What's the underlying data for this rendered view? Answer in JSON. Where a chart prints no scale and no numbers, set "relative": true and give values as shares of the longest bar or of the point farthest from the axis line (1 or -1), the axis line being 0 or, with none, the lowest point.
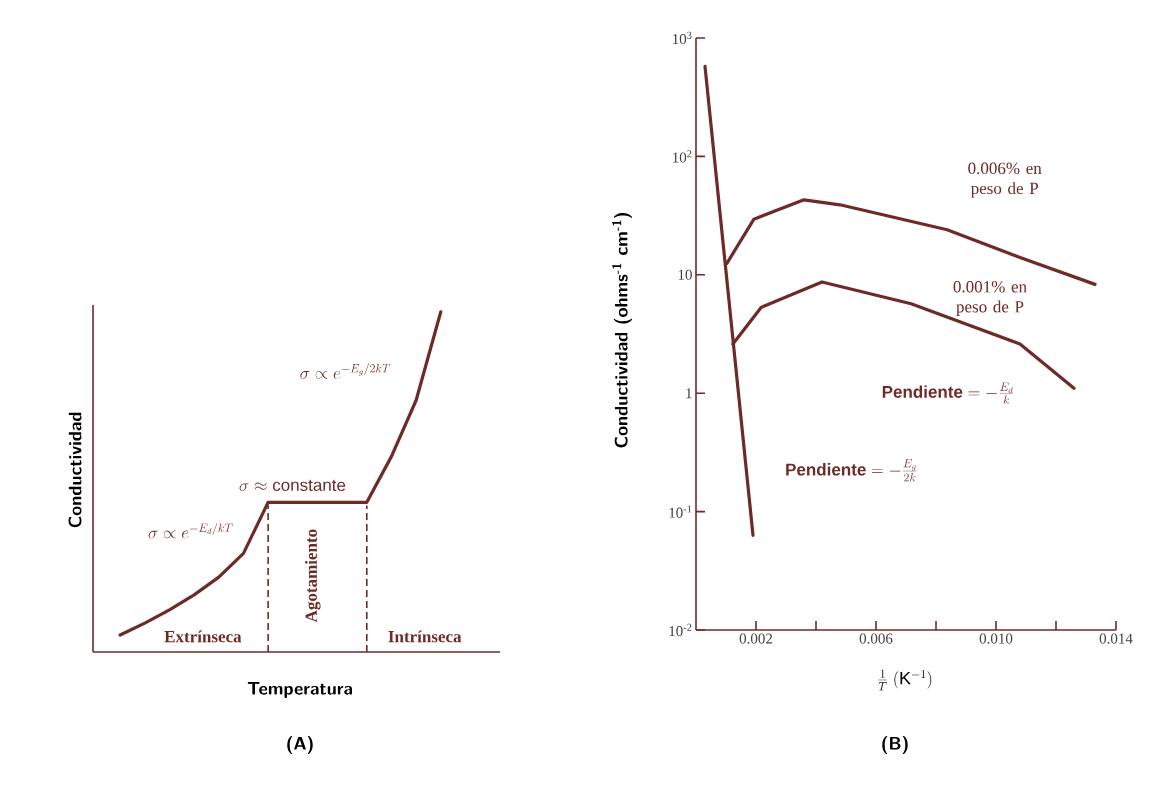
{
  "chart_data": [
    {
      "type": "line",
      "title": "(A)",
      "xlabel": "Temperatura",
      "ylabel": "Conductividad",
      "relative": true,
      "categories": [
        null,
        null,
        null,
        null,
        null,
        null,
        null,
        null,
        null,
        null,
        null,
        null,
        null,
        null
      ],
      "series": [
        {
          "color": "#6e2a27",
          "values": [
            0.05,
            0.085,
            0.124,
            0.168,
            0.22,
            0.29,
            0.44,
            0.44,
            0.44,
            0.44,
            0.44,
            0.575,
            0.74,
            1
          ]
        }
      ],
      "annotations": [
        "\\sigma \\propto e^{-E_d/kT}",
        "\\sigma \\approx \\mathrm{constante}",
        "\\sigma \\propto e^{-E_g/2kT}",
        "Extrínseca",
        "Agotamiento",
        "Intrínseca"
      ]
    },
    {
      "type": "line",
      "title": "(B)",
      "xlabel": "\\frac{1}{T}\\;(\\mathrm{K}^{-1})",
      "ylabel": "Conductividad (ohms$^{-1}$ cm$^{-1}$)",
      "log": "y",
      "xlim": [
        0,
        0.014
      ],
      "ylim": [
        0.01,
        1000
      ],
      "xticks": [
        0.002,
        {
          "value": 0.004,
          "label": null
        },
        0.006,
        {
          "value": 0.008,
          "label": null
        },
        {
          "value": 0.01,
          "label": "0.010"
        },
        {
          "value": 0.012,
          "label": null
        },
        0.014
      ],
      "yticks": [
        {
          "value": 0.01,
          "label": "10$^{-2}$"
        },
        {
          "value": 0.1,
          "label": "10$^{-1}$"
        },
        1,
        10,
        {
          "value": 100,
          "label": "10$^{2}$"
        },
        {
          "value": 1000,
          "label": "10$^{3}$"
        }
      ],
      "series": [
        {
          "name": "0.006% en peso de P",
          "color": "#6e2a27",
          "x": [
            0.00103,
            0.00193,
            0.0036,
            0.0048,
            0.00837,
            0.0108,
            0.0133
          ],
          "values": [
            12.5,
            29.5,
            43,
            39,
            24,
            14,
            8.3
          ]
        },
        {
          "name": "0.001% en peso de P",
          "color": "#6e2a27",
          "x": [
            0.00123,
            0.00217,
            0.0042,
            0.00717,
            0.0108,
            0.0126
          ],
          "values": [
            2.6,
            5.3,
            8.7,
            5.7,
            2.6,
            1.1
          ]
        },
        {
          "color": "#6e2a27",
          "x": [
            0.0003,
            0.0019
          ],
          "values": [
            575,
            0.063
          ]
        }
      ],
      "annotations": [
        "\\mathrm{\\mathbf{Pendiente}} = -\\frac{E_d}{k}",
        "\\mathrm{\\mathbf{Pendiente}} = -\\frac{E_g}{2k}"
      ]
    }
  ]
}
